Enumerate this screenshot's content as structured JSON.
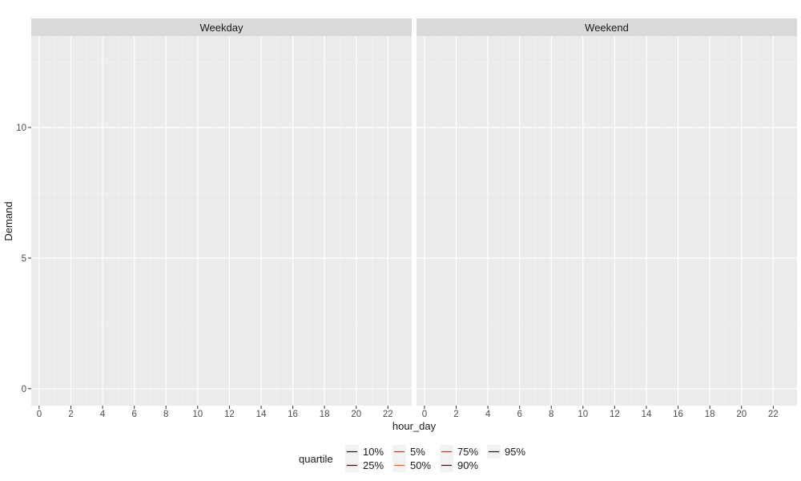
{
  "chart_data": {
    "type": "line",
    "facets": [
      "Weekday",
      "Weekend"
    ],
    "xlabel": "hour_day",
    "ylabel": "Demand",
    "x_ticks": [
      0,
      2,
      4,
      6,
      8,
      10,
      12,
      14,
      16,
      18,
      20,
      22
    ],
    "y_ticks": [
      0,
      5,
      10
    ],
    "xlim": [
      -0.5,
      23.5
    ],
    "ylim": [
      -0.65,
      13.5
    ],
    "grid": true,
    "legend": {
      "title": "quartile",
      "position": "bottom",
      "entries": [
        {
          "label": "10%",
          "color": "#1a1a1a"
        },
        {
          "label": "25%",
          "color": "#4a0d0d"
        },
        {
          "label": "5%",
          "color": "#c0392b"
        },
        {
          "label": "50%",
          "color": "#e8602c"
        },
        {
          "label": "75%",
          "color": "#c0392b"
        },
        {
          "label": "90%",
          "color": "#4a0d0d"
        },
        {
          "label": "95%",
          "color": "#1a1a1a"
        }
      ]
    },
    "series": []
  }
}
